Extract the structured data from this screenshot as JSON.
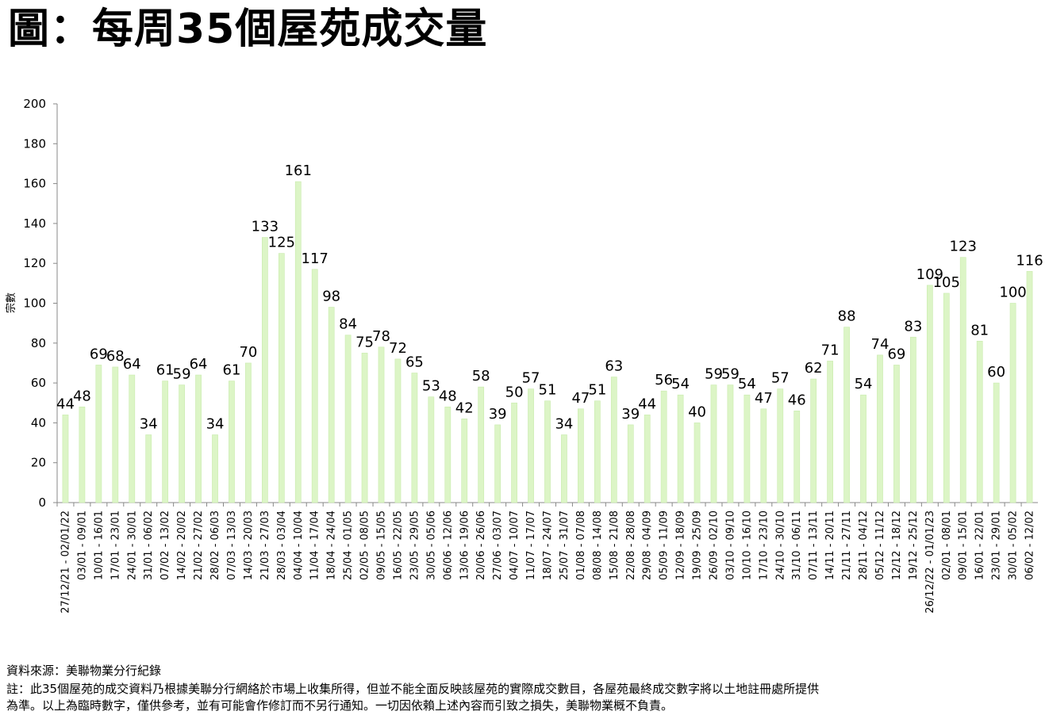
{
  "title": "圖：每周35個屋苑成交量",
  "footer": {
    "source": "資料來源：美聯物業分行紀錄",
    "note_line1": "註：此35個屋苑的成交資料乃根據美聯分行網絡於市場上收集所得，但並不能全面反映該屋苑的實際成交數目，各屋苑最終成交數字將以土地註冊處所提供",
    "note_line2": "為準。以上為臨時數字，僅供參考，並有可能會作修訂而不另行通知。一切因依賴上述內容而引致之損失，美聯物業概不負責。"
  },
  "chart_data": {
    "type": "bar",
    "ylabel": "宗數",
    "xlabel": "",
    "ylim": [
      0,
      200
    ],
    "yticks": [
      0,
      20,
      40,
      60,
      80,
      100,
      120,
      140,
      160,
      180,
      200
    ],
    "bar_color": "#dcf5c6",
    "bar_edge_color": "#c9ebad",
    "categories": [
      "27/12/21 - 02/01/22",
      "03/01 - 09/01",
      "10/01 - 16/01",
      "17/01 - 23/01",
      "24/01 - 30/01",
      "31/01 - 06/02",
      "07/02 - 13/02",
      "14/02 - 20/02",
      "21/02 - 27/02",
      "28/02 - 06/03",
      "07/03 - 13/03",
      "14/03 - 20/03",
      "21/03 - 27/03",
      "28/03 - 03/04",
      "04/04 - 10/04",
      "11/04 - 17/04",
      "18/04 - 24/04",
      "25/04 - 01/05",
      "02/05 - 08/05",
      "09/05 - 15/05",
      "16/05 - 22/05",
      "23/05 - 29/05",
      "30/05 - 05/06",
      "06/06 - 12/06",
      "13/06 - 19/06",
      "20/06 - 26/06",
      "27/06 - 03/07",
      "04/07 - 10/07",
      "11/07 - 17/07",
      "18/07 - 24/07",
      "25/07 - 31/07",
      "01/08 - 07/08",
      "08/08 - 14/08",
      "15/08 - 21/08",
      "22/08 - 28/08",
      "29/08 - 04/09",
      "05/09 - 11/09",
      "12/09 - 18/09",
      "19/09 - 25/09",
      "26/09 - 02/10",
      "03/10 - 09/10",
      "10/10 - 16/10",
      "17/10 - 23/10",
      "24/10 - 30/10",
      "31/10 - 06/11",
      "07/11 - 13/11",
      "14/11 - 20/11",
      "21/11 - 27/11",
      "28/11 - 04/12",
      "05/12 - 11/12",
      "12/12 - 18/12",
      "19/12 - 25/12",
      "26/12/22 - 01/01/23",
      "02/01 - 08/01",
      "09/01 - 15/01",
      "16/01 - 22/01",
      "23/01 - 29/01",
      "30/01 - 05/02",
      "06/02 - 12/02"
    ],
    "values": [
      44,
      48,
      69,
      68,
      64,
      34,
      61,
      59,
      64,
      34,
      61,
      70,
      133,
      125,
      161,
      117,
      98,
      84,
      75,
      78,
      72,
      65,
      53,
      48,
      42,
      58,
      39,
      50,
      57,
      51,
      34,
      47,
      51,
      63,
      39,
      44,
      56,
      54,
      40,
      59,
      59,
      54,
      47,
      57,
      46,
      62,
      71,
      88,
      54,
      74,
      69,
      83,
      109,
      105,
      123,
      81,
      60,
      100,
      116
    ]
  }
}
